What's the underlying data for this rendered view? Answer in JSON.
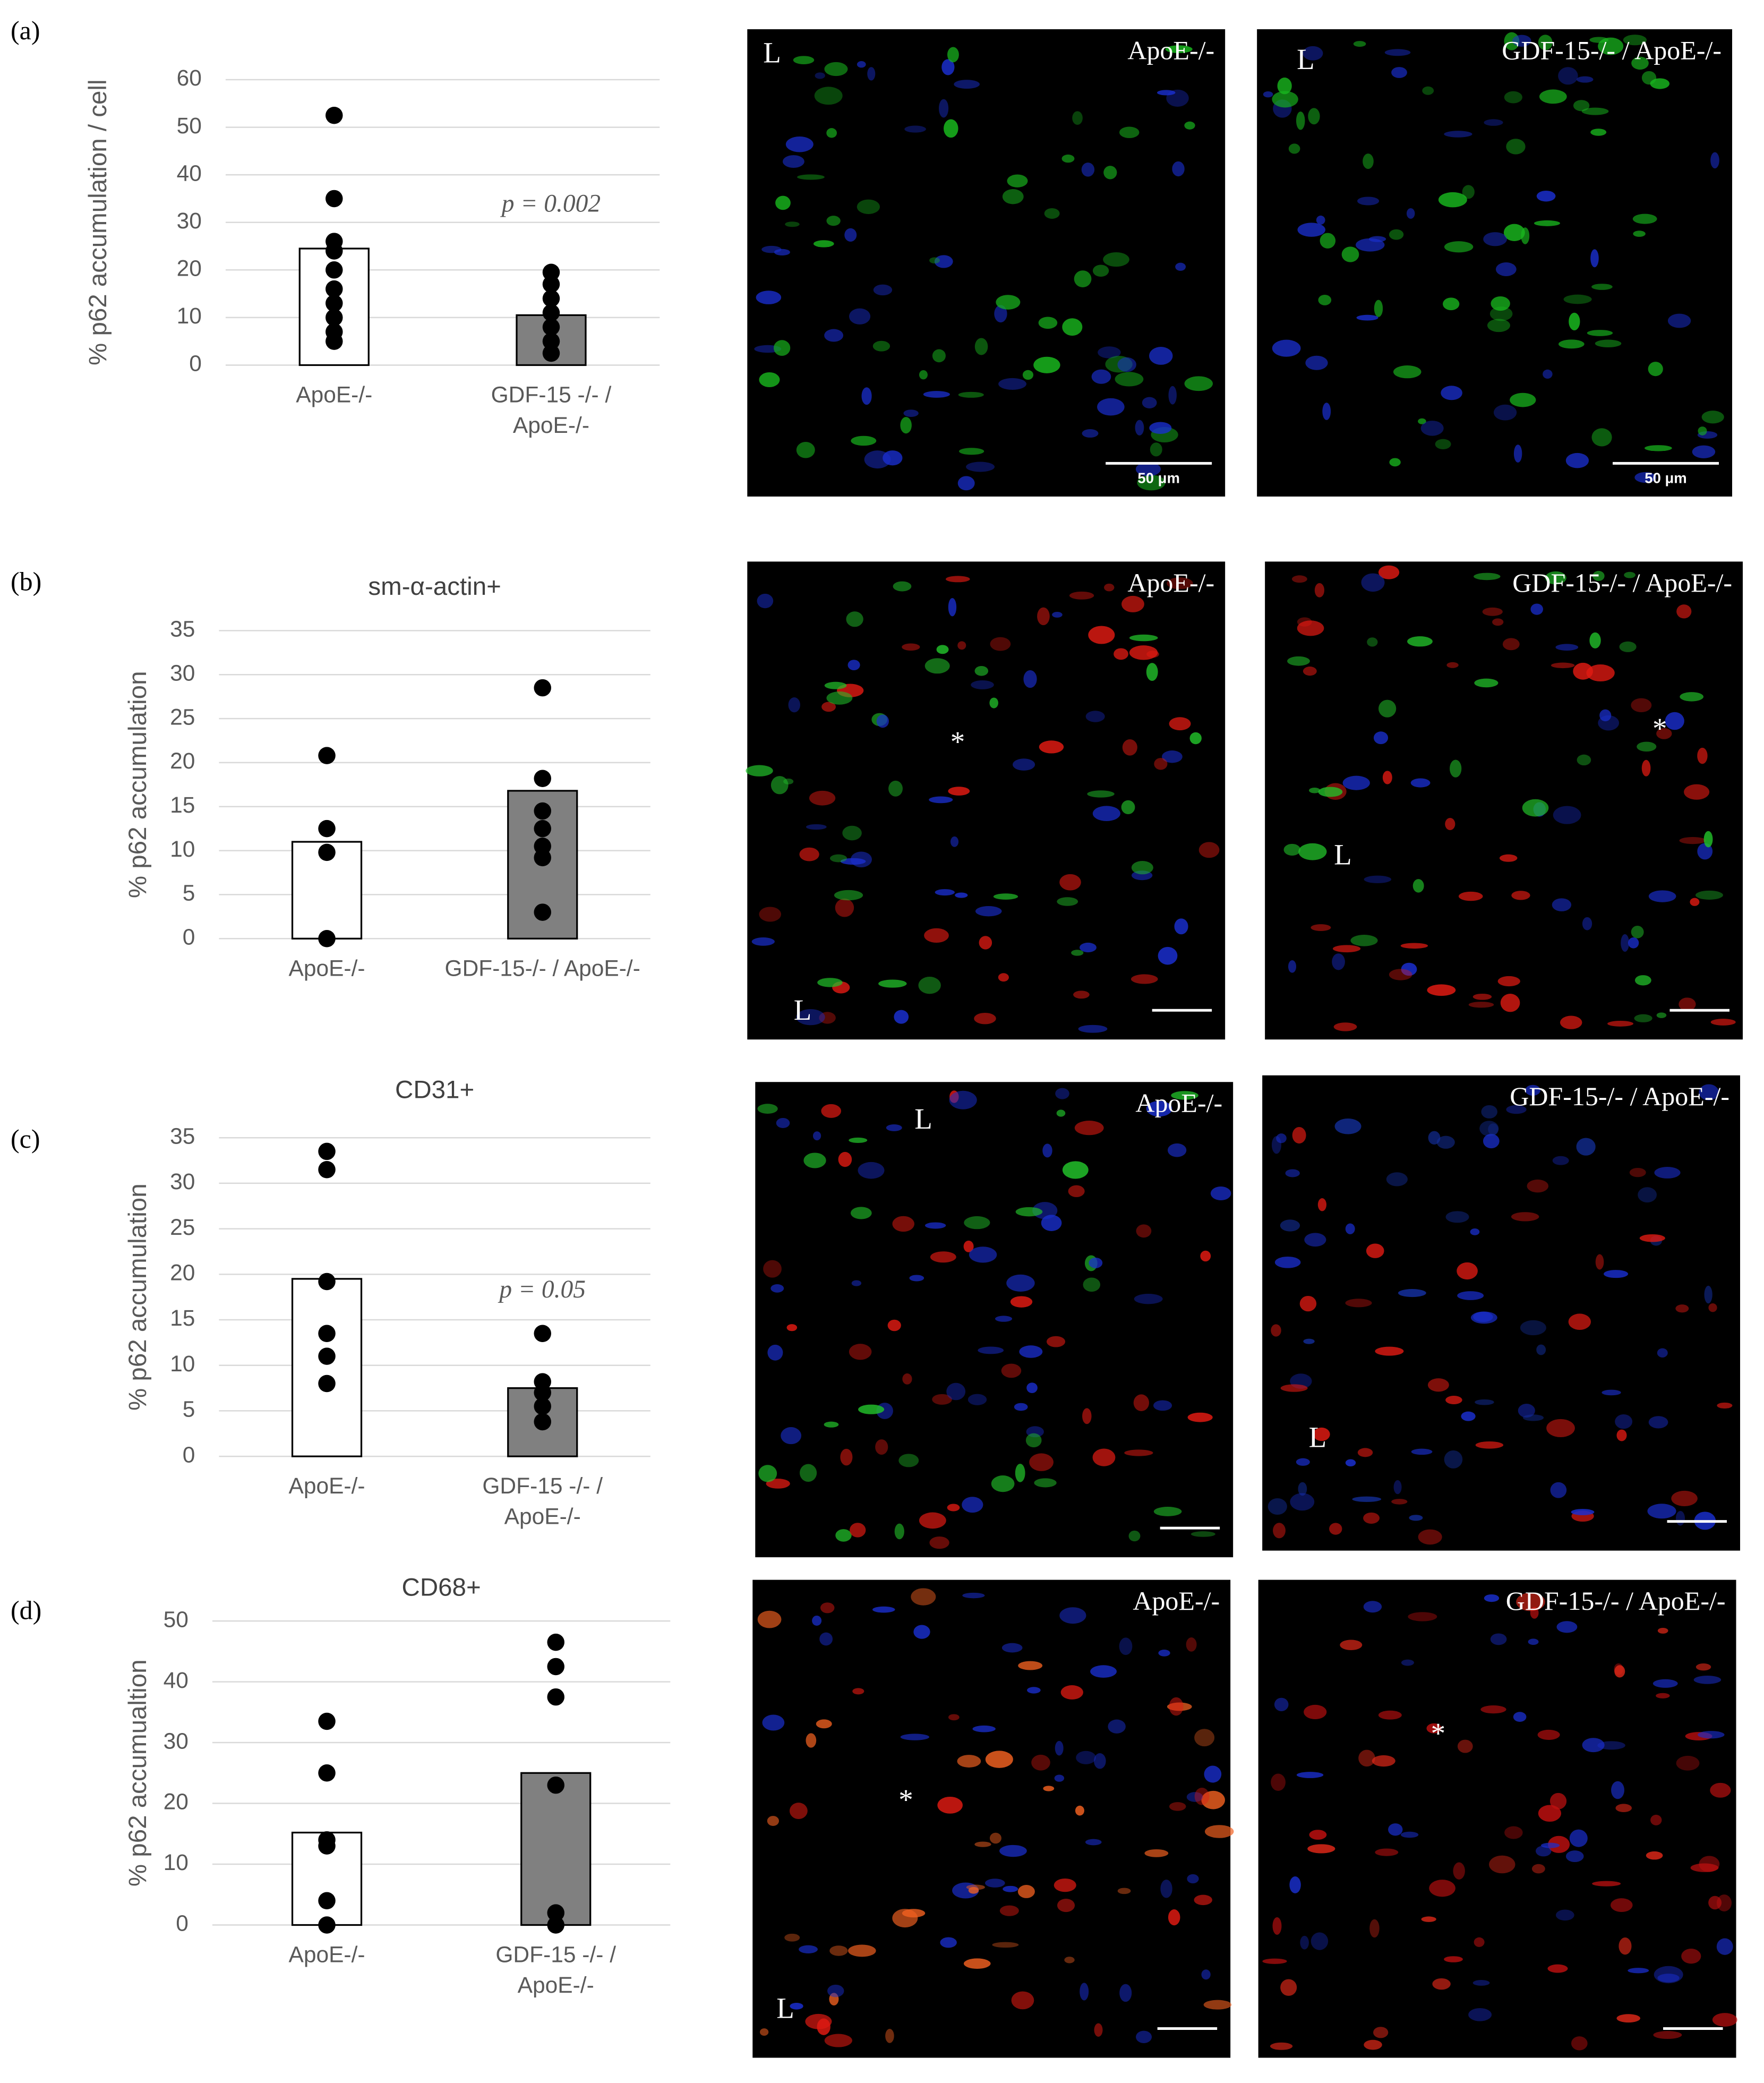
{
  "chart_data": [
    {
      "type": "bar",
      "y_label": "% p62 accumulation / cell",
      "categories": [
        "ApoE-/-",
        "GDF-15 -/- / ApoE-/-"
      ],
      "values": [
        24.5,
        10.5
      ],
      "bar_colors": [
        "#ffffff",
        "#808080"
      ],
      "points": [
        [
          52.5,
          35,
          26,
          24,
          20,
          16,
          13,
          10,
          7,
          5
        ],
        [
          19.5,
          17,
          14,
          11,
          8,
          5,
          2.5
        ]
      ],
      "point_color": "#000000",
      "annotation": "p = 0.002",
      "ylim": [
        0,
        60
      ],
      "yticks": [
        0,
        10,
        20,
        30,
        40,
        50,
        60
      ],
      "grid": true
    },
    {
      "type": "bar",
      "title": "sm-α-actin+",
      "y_label": "% p62 accumulation",
      "categories": [
        "ApoE-/-",
        "GDF-15-/- / ApoE-/-"
      ],
      "values": [
        11,
        16.8
      ],
      "bar_colors": [
        "#ffffff",
        "#808080"
      ],
      "points": [
        [
          20.8,
          12.5,
          9.8,
          0
        ],
        [
          28.5,
          18.2,
          14.5,
          12.5,
          10.5,
          9.2,
          3
        ]
      ],
      "point_color": "#000000",
      "ylim": [
        0,
        35
      ],
      "yticks": [
        0,
        5,
        10,
        15,
        20,
        25,
        30,
        35
      ],
      "grid": true
    },
    {
      "type": "bar",
      "title": "CD31+",
      "y_label": "% p62 accumulation",
      "categories": [
        "ApoE-/-",
        "GDF-15 -/- / ApoE-/-"
      ],
      "values": [
        19.5,
        7.5
      ],
      "bar_colors": [
        "#ffffff",
        "#808080"
      ],
      "points": [
        [
          33.5,
          31.5,
          19.2,
          13.5,
          11,
          8
        ],
        [
          13.5,
          8.2,
          7,
          5.5,
          3.8
        ]
      ],
      "point_color": "#000000",
      "annotation": "p = 0.05",
      "ylim": [
        0,
        35
      ],
      "yticks": [
        0,
        5,
        10,
        15,
        20,
        25,
        30,
        35
      ],
      "grid": true
    },
    {
      "type": "bar",
      "title": "CD68+",
      "y_label": "% p62 accumualtion",
      "categories": [
        "ApoE-/-",
        "GDF-15 -/- / ApoE-/-"
      ],
      "values": [
        15.2,
        25
      ],
      "bar_colors": [
        "#ffffff",
        "#808080"
      ],
      "points": [
        [
          33.5,
          25,
          14,
          13,
          4,
          0
        ],
        [
          46.5,
          42.5,
          37.5,
          23,
          2,
          0
        ]
      ],
      "point_color": "#000000",
      "ylim": [
        0,
        50
      ],
      "yticks": [
        0,
        10,
        20,
        30,
        40,
        50
      ],
      "grid": true
    }
  ],
  "figure": {
    "panel_labels": [
      "(a)",
      "(b)",
      "(c)",
      "(d)"
    ],
    "micrographs": [
      {
        "label": "ApoE-/-",
        "marks": [
          "L"
        ],
        "scale_bar": "50 μm"
      },
      {
        "label": "GDF-15-/- / ApoE-/-",
        "marks": [
          "L"
        ],
        "scale_bar": "50 μm"
      },
      {
        "label": "ApoE-/-",
        "marks": [
          "*",
          "L"
        ]
      },
      {
        "label": "GDF-15-/- / ApoE-/-",
        "marks": [
          "*",
          "L"
        ]
      },
      {
        "label": "ApoE-/-",
        "marks": [
          "L"
        ]
      },
      {
        "label": "GDF-15-/- / ApoE-/-",
        "marks": [
          "L"
        ]
      },
      {
        "label": "ApoE-/-",
        "marks": [
          "*",
          "L"
        ]
      },
      {
        "label": "GDF-15-/- / ApoE-/-",
        "marks": [
          "*"
        ]
      }
    ]
  }
}
